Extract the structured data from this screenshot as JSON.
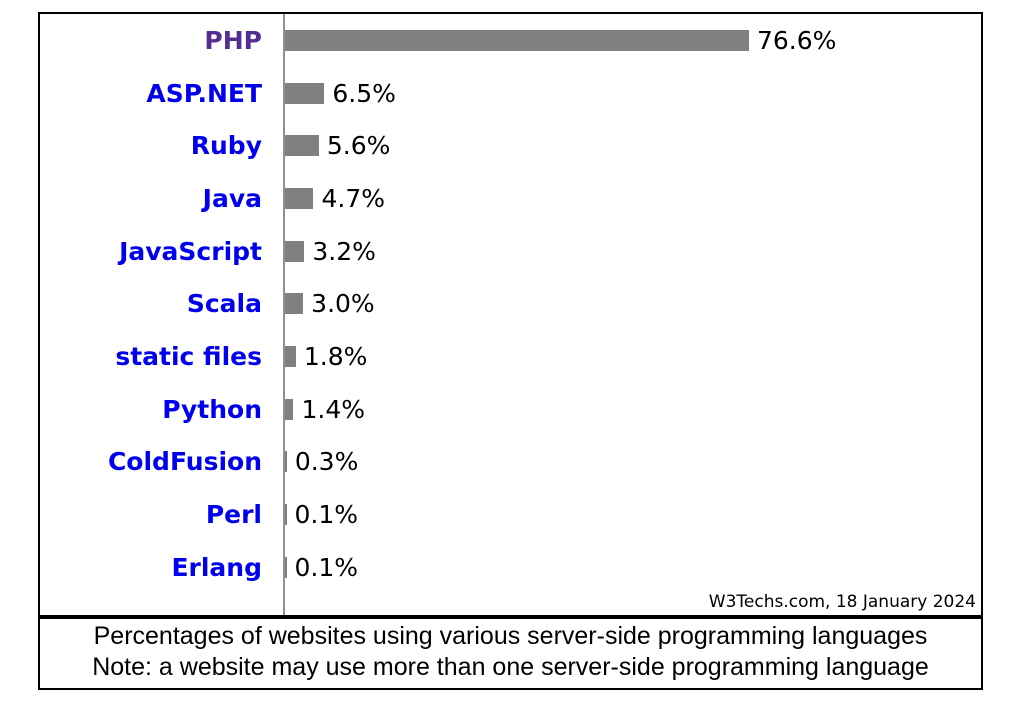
{
  "chart_data": {
    "type": "bar",
    "orientation": "horizontal",
    "title": "",
    "xlabel": "",
    "ylabel": "",
    "grid": false,
    "legend": false,
    "xlim": [
      0,
      100
    ],
    "categories": [
      "PHP",
      "ASP.NET",
      "Ruby",
      "Java",
      "JavaScript",
      "Scala",
      "static files",
      "Python",
      "ColdFusion",
      "Perl",
      "Erlang"
    ],
    "values": [
      76.6,
      6.5,
      5.6,
      4.7,
      3.2,
      3.0,
      1.8,
      1.4,
      0.3,
      0.1,
      0.1
    ],
    "value_labels": [
      "76.6%",
      "6.5%",
      "5.6%",
      "4.7%",
      "3.2%",
      "3.0%",
      "1.8%",
      "1.4%",
      "0.3%",
      "0.1%",
      "0.1%"
    ],
    "bar_color": "#808080",
    "axis_color": "#909090",
    "category_link_color": "#0000EE",
    "category_visited_link_color": "#552D90",
    "visited_categories": [
      "PHP"
    ]
  },
  "source_note": "W3Techs.com, 18 January 2024",
  "caption": {
    "line1": "Percentages of websites using various server-side programming languages",
    "line2": "Note: a website may use more than one server-side programming language"
  }
}
